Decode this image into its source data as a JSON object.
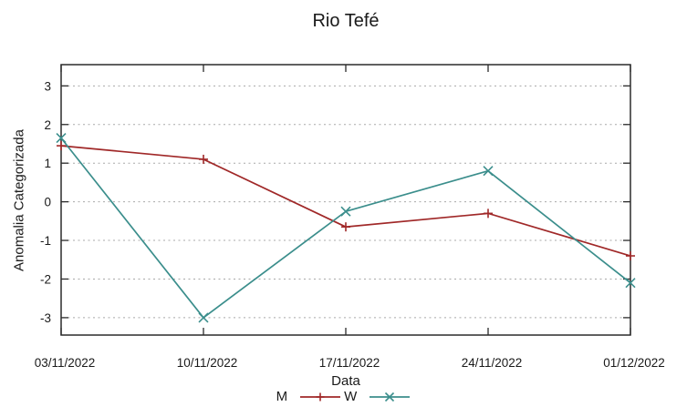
{
  "chart": {
    "background": "#ffffff",
    "text_color": "#1a1a1a",
    "axis_color": "#2b2b2b",
    "grid_color": "#a8a8a8"
  },
  "chart_data": {
    "type": "line",
    "title": "Rio Tefé",
    "xlabel": "Data",
    "ylabel": "Anomalia Categorizada",
    "categories": [
      "03/11/2022",
      "10/11/2022",
      "17/11/2022",
      "24/11/2022",
      "01/12/2022"
    ],
    "series": [
      {
        "name": "M",
        "color": "#a02828",
        "marker": "plus",
        "values": [
          1.45,
          1.1,
          -0.65,
          -0.3,
          -1.4
        ]
      },
      {
        "name": "W",
        "color": "#3b8e8c",
        "marker": "cross",
        "values": [
          1.65,
          -3.0,
          -0.25,
          0.8,
          -2.1
        ]
      }
    ],
    "yticks": [
      3,
      2,
      1,
      0,
      -1,
      -2,
      -3
    ],
    "ylim": [
      -3.45,
      3.55
    ],
    "grid": "horizontal-dotted",
    "legend_position": "bottom-center"
  }
}
